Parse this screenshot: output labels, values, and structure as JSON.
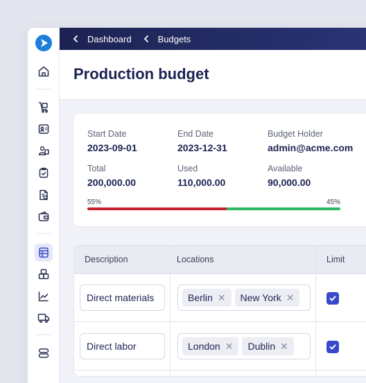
{
  "colors": {
    "topbar": "#1c2352",
    "accent": "#3949c9",
    "used_bar": "#c7202e",
    "available_bar": "#2fb864",
    "logo": "#1c7fdc"
  },
  "sidebar": {
    "logo": "play-logo",
    "items": [
      {
        "icon": "home-icon"
      },
      {
        "icon": "cart-icon"
      },
      {
        "icon": "contacts-icon"
      },
      {
        "icon": "users-icon"
      },
      {
        "icon": "clipboard-check-icon"
      },
      {
        "icon": "invoice-icon"
      },
      {
        "icon": "wallet-icon"
      },
      {
        "icon": "budget-icon",
        "active": true
      },
      {
        "icon": "boxes-icon"
      },
      {
        "icon": "chart-icon"
      },
      {
        "icon": "truck-icon"
      },
      {
        "icon": "toggle-icon"
      }
    ]
  },
  "breadcrumb": {
    "items": [
      "Dashboard",
      "Budgets"
    ]
  },
  "page": {
    "title": "Production budget"
  },
  "summary": {
    "start_date": {
      "label": "Start Date",
      "value": "2023-09-01"
    },
    "end_date": {
      "label": "End Date",
      "value": "2023-12-31"
    },
    "holder": {
      "label": "Budget Holder",
      "value": "admin@acme.com"
    },
    "total": {
      "label": "Total",
      "value": "200,000.00"
    },
    "used": {
      "label": "Used",
      "value": "110,000.00"
    },
    "available": {
      "label": "Available",
      "value": "90,000.00"
    },
    "used_pct_label": "55%",
    "available_pct_label": "45%",
    "used_fraction": 0.55
  },
  "table": {
    "headers": [
      "Description",
      "Locations",
      "Limit"
    ],
    "rows": [
      {
        "description": "Direct materials",
        "locations": [
          "Berlin",
          "New York"
        ],
        "limit_checked": true
      },
      {
        "description": "Direct labor",
        "locations": [
          "London",
          "Dublin"
        ],
        "limit_checked": true
      }
    ],
    "remove_glyph": "✕"
  }
}
